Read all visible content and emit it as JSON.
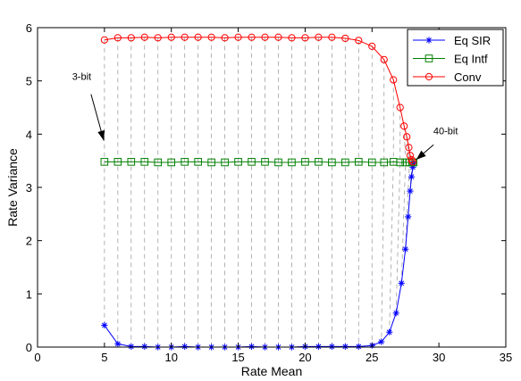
{
  "chart_data": {
    "type": "line",
    "title": "",
    "xlabel": "Rate Mean",
    "ylabel": "Rate Variance",
    "xlim": [
      0,
      35
    ],
    "ylim": [
      0,
      6
    ],
    "xticks": [
      0,
      5,
      10,
      15,
      20,
      25,
      30,
      35
    ],
    "yticks": [
      0,
      1,
      2,
      3,
      4,
      5,
      6
    ],
    "grid": false,
    "legend_position": "top-right",
    "series": [
      {
        "name": "Eq SIR",
        "color": "#0000ff",
        "marker": "star",
        "points": [
          [
            5.0,
            0.41
          ],
          [
            6.0,
            0.06
          ],
          [
            7.0,
            0.01
          ],
          [
            8.0,
            0.01
          ],
          [
            9.0,
            0.0
          ],
          [
            10.0,
            0.0
          ],
          [
            11.0,
            0.01
          ],
          [
            12.0,
            0.0
          ],
          [
            13.0,
            0.0
          ],
          [
            14.0,
            0.0
          ],
          [
            15.0,
            0.0
          ],
          [
            16.0,
            0.01
          ],
          [
            17.0,
            0.0
          ],
          [
            18.0,
            0.0
          ],
          [
            19.0,
            0.0
          ],
          [
            20.0,
            0.01
          ],
          [
            21.0,
            0.01
          ],
          [
            22.0,
            0.01
          ],
          [
            23.0,
            0.01
          ],
          [
            24.0,
            0.01
          ],
          [
            25.0,
            0.03
          ],
          [
            25.7,
            0.1
          ],
          [
            26.3,
            0.28
          ],
          [
            26.8,
            0.64
          ],
          [
            27.2,
            1.2
          ],
          [
            27.5,
            1.84
          ],
          [
            27.7,
            2.45
          ],
          [
            27.85,
            2.93
          ],
          [
            27.95,
            3.2
          ],
          [
            28.05,
            3.38
          ],
          [
            28.1,
            3.45
          ]
        ]
      },
      {
        "name": "Eq Intf",
        "color": "#008000",
        "marker": "square",
        "points": [
          [
            5.0,
            3.48
          ],
          [
            6.0,
            3.48
          ],
          [
            7.0,
            3.48
          ],
          [
            8.0,
            3.48
          ],
          [
            9.0,
            3.47
          ],
          [
            10.0,
            3.47
          ],
          [
            11.0,
            3.48
          ],
          [
            12.0,
            3.48
          ],
          [
            13.0,
            3.47
          ],
          [
            14.0,
            3.47
          ],
          [
            15.0,
            3.48
          ],
          [
            16.0,
            3.48
          ],
          [
            17.0,
            3.48
          ],
          [
            18.0,
            3.47
          ],
          [
            19.0,
            3.47
          ],
          [
            20.0,
            3.48
          ],
          [
            21.0,
            3.48
          ],
          [
            22.0,
            3.47
          ],
          [
            23.0,
            3.47
          ],
          [
            24.0,
            3.48
          ],
          [
            25.0,
            3.47
          ],
          [
            25.9,
            3.47
          ],
          [
            26.6,
            3.48
          ],
          [
            27.1,
            3.47
          ],
          [
            27.5,
            3.47
          ],
          [
            27.8,
            3.47
          ],
          [
            28.0,
            3.47
          ],
          [
            28.1,
            3.47
          ]
        ]
      },
      {
        "name": "Conv",
        "color": "#ff0000",
        "marker": "circle",
        "points": [
          [
            5.0,
            5.77
          ],
          [
            6.0,
            5.81
          ],
          [
            7.0,
            5.81
          ],
          [
            8.0,
            5.82
          ],
          [
            9.0,
            5.81
          ],
          [
            10.0,
            5.82
          ],
          [
            11.0,
            5.82
          ],
          [
            12.0,
            5.82
          ],
          [
            13.0,
            5.82
          ],
          [
            14.0,
            5.81
          ],
          [
            15.0,
            5.82
          ],
          [
            16.0,
            5.82
          ],
          [
            17.0,
            5.82
          ],
          [
            18.0,
            5.82
          ],
          [
            19.0,
            5.81
          ],
          [
            20.0,
            5.81
          ],
          [
            21.0,
            5.82
          ],
          [
            22.0,
            5.82
          ],
          [
            23.0,
            5.8
          ],
          [
            24.0,
            5.76
          ],
          [
            25.0,
            5.65
          ],
          [
            25.9,
            5.4
          ],
          [
            26.6,
            5.02
          ],
          [
            27.1,
            4.5
          ],
          [
            27.4,
            4.15
          ],
          [
            27.6,
            3.95
          ],
          [
            27.75,
            3.75
          ],
          [
            27.85,
            3.6
          ],
          [
            27.95,
            3.52
          ],
          [
            28.05,
            3.48
          ]
        ]
      }
    ],
    "dashed_connectors": {
      "color": "#a0a0a0",
      "description_hidden": true
    },
    "annotations": [
      {
        "text": "3-bit",
        "label_at": [
          3.3,
          5.02
        ],
        "arrow_from": [
          4.0,
          4.75
        ],
        "arrow_to": [
          4.95,
          3.88
        ]
      },
      {
        "text": "40-bit",
        "label_at": [
          30.5,
          4.0
        ],
        "arrow_from": [
          29.6,
          3.8
        ],
        "arrow_to": [
          28.3,
          3.52
        ]
      }
    ]
  }
}
